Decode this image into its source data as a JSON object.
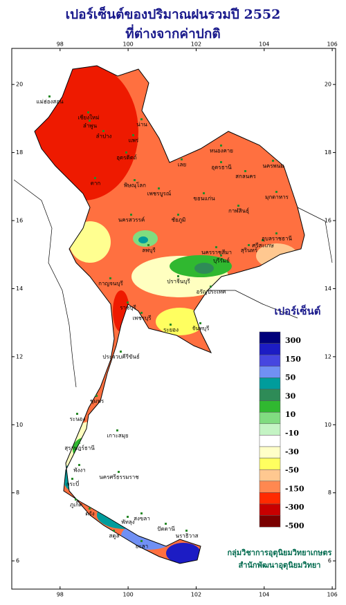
{
  "title": [
    "เปอร์เซ็นต์ของปริมาณฝนรวมปี 2552",
    "ที่ต่างจากค่าปกติ"
  ],
  "axes": {
    "xlim": [
      96.58,
      106.1
    ],
    "ylim": [
      5.17,
      21.06
    ],
    "xticks": [
      98,
      100,
      102,
      104,
      106
    ],
    "yticks": [
      6,
      8,
      10,
      12,
      14,
      16,
      18,
      20
    ]
  },
  "provinces": [
    "แม่ฮ่องสอน",
    "เชียงใหม่",
    "ลำพูน",
    "ลำปาง",
    "น่าน",
    "แพร่",
    "อุตรดิตถ์",
    "ตาก",
    "พิษณุโลก",
    "เพชรบูรณ์",
    "เลย",
    "หนองคาย",
    "อุดรธานี",
    "สกลนคร",
    "นครพนม",
    "มุกดาหาร",
    "ขอนแก่น",
    "กาฬสินธุ์",
    "ชัยภูมิ",
    "นครสวรรค์",
    "ลพบุรี",
    "นครราชสีมา",
    "บุรีรัมย์",
    "สุรินทร์",
    "ศรีสะเกษ",
    "อุบลราชธานี",
    "กาญจนบุรี",
    "ปราจีนบุรี",
    "อรัญประเทศ",
    "ราชบุรี",
    "เพชรบุรี",
    "ระยอง",
    "จันทบุรี",
    "ประจวบคีรีขันธ์",
    "ชุมพร",
    "ระนอง",
    "สุราษฎร์ธานี",
    "เกาะสมุย",
    "นครศรีธรรมราช",
    "พังงา",
    "กระบี่",
    "ภูเก็ต",
    "ตรัง",
    "พัทลุง",
    "สงขลา",
    "สตูล",
    "ปัตตานี",
    "ยะลา",
    "นราธิวาส"
  ],
  "legend": {
    "title": "เปอร์เซ็นต์",
    "colors": [
      "#00007a",
      "#1c1cc4",
      "#4646e0",
      "#7090f4",
      "#009c9c",
      "#2e8b57",
      "#30b830",
      "#80dc80",
      "#c4f4c4",
      "#ffffff",
      "#ffffc8",
      "#ffff60",
      "#ffc890",
      "#ff8850",
      "#ff2a00",
      "#c80000",
      "#7a0000"
    ],
    "labels": [
      "300",
      "150",
      "50",
      "30",
      "10",
      "-10",
      "-30",
      "-50",
      "-150",
      "-300",
      "-500"
    ]
  },
  "credit": [
    "กลุ่มวิชาการอุตุนิยมวิทยาเกษตร",
    "สำนักพัฒนาอุตุนิยมวิทยา"
  ]
}
